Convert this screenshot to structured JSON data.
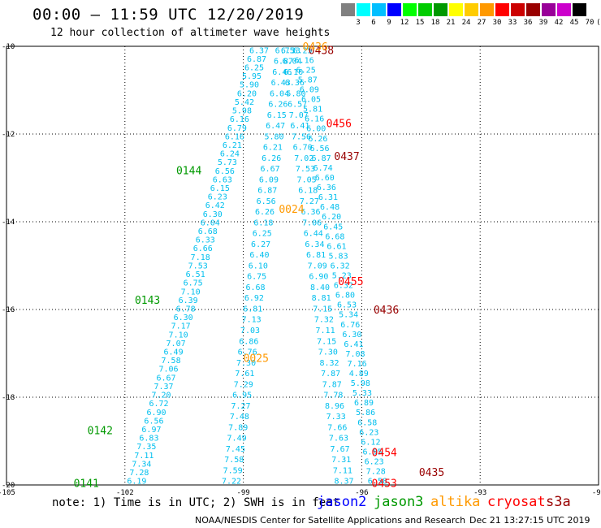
{
  "header": {
    "title": "00:00 – 11:59 UTC 12/20/2019",
    "subtitle": "12 hour collection of altimeter wave heights"
  },
  "colorbar": {
    "colors": [
      "#808080",
      "#00ffff",
      "#00bfff",
      "#0000ff",
      "#00ff00",
      "#00cc00",
      "#009900",
      "#ffff00",
      "#ffcc00",
      "#ff9900",
      "#ff0000",
      "#cc0000",
      "#990000",
      "#990099",
      "#cc00cc",
      "#000000"
    ],
    "labels": [
      "3",
      "6",
      "9",
      "12",
      "15",
      "18",
      "21",
      "24",
      "27",
      "30",
      "33",
      "36",
      "39",
      "42",
      "45",
      "70",
      "(ft)"
    ]
  },
  "axes": {
    "x_ticks": [
      "-105",
      "-102",
      "-99",
      "-96",
      "-93",
      "-90"
    ],
    "y_ticks": [
      "-10",
      "-12",
      "-14",
      "-16",
      "-18",
      "-20"
    ]
  },
  "tracks": [
    {
      "satellite": "jason2",
      "color": "#00bfee",
      "x0": -101.7,
      "y0": -19.9,
      "x1": -98.6,
      "y1": -10.08,
      "values": [
        "6.19",
        "7.28",
        "7.34",
        "7.11",
        "7.35",
        "6.83",
        "6.97",
        "6.56",
        "6.90",
        "6.72",
        "7.20",
        "7.37",
        "6.67",
        "7.06",
        "7.58",
        "6.49",
        "7.07",
        "7.10",
        "7.17",
        "6.30",
        "6.78",
        "6.39",
        "7.10",
        "6.75",
        "6.51",
        "7.53",
        "7.18",
        "6.66",
        "6.33",
        "6.68",
        "6.04",
        "6.30",
        "6.42",
        "6.23",
        "6.15",
        "6.63",
        "6.56",
        "5.73",
        "6.24",
        "6.21",
        "6.16",
        "6.79",
        "6.16",
        "5.98",
        "5.42",
        "6.20",
        "5.90",
        "5.95",
        "6.25",
        "6.87",
        "6.37"
      ]
    },
    {
      "satellite": "jason2",
      "color": "#00bfee",
      "x0": -99.3,
      "y0": -19.9,
      "x1": -97.95,
      "y1": -10.08,
      "values": [
        "7.22",
        "7.59",
        "7.58",
        "7.45",
        "7.49",
        "7.89",
        "7.48",
        "7.27",
        "6.95",
        "7.29",
        "7.61",
        "7.30",
        "6.76",
        "6.86",
        "7.03",
        "7.13",
        "6.81",
        "6.92",
        "6.68",
        "6.75",
        "6.10",
        "6.40",
        "6.27",
        "6.25",
        "6.18",
        "6.26",
        "6.56",
        "6.87",
        "6.09",
        "6.67",
        "6.26",
        "6.21",
        "5.80",
        "6.47",
        "6.15",
        "6.26",
        "6.04",
        "6.43",
        "6.46",
        "6.87",
        "6.75"
      ]
    },
    {
      "satellite": "jason2",
      "color": "#00bfee",
      "x0": -96.45,
      "y0": -19.9,
      "x1": -97.8,
      "y1": -10.08,
      "values": [
        "8.37",
        "7.11",
        "7.31",
        "7.67",
        "7.63",
        "7.66",
        "7.33",
        "8.96",
        "7.78",
        "7.87",
        "7.87",
        "8.32",
        "7.30",
        "7.15",
        "7.11",
        "7.32",
        "7.15",
        "8.81",
        "8.40",
        "6.90",
        "7.09",
        "6.81",
        "6.34",
        "6.44",
        "7.06",
        "6.36",
        "7.27",
        "6.18",
        "7.05",
        "7.53",
        "7.02",
        "6.70",
        "7.56",
        "6.41",
        "7.07",
        "6.57",
        "5.80",
        "6.36",
        "6.10",
        "6.04",
        "6.33"
      ]
    },
    {
      "satellite": "jason2",
      "color": "#00bfee",
      "x0": -95.6,
      "y0": -19.9,
      "x1": -97.5,
      "y1": -10.08,
      "values": [
        "6.58",
        "7.28",
        "6.23",
        "6.55",
        "6.12",
        "6.23",
        "6.58",
        "5.86",
        "6.89",
        "5.33",
        "5.98",
        "4.89",
        "7.16",
        "7.08",
        "6.41",
        "6.30",
        "6.76",
        "5.34",
        "6.53",
        "6.80",
        "6.32",
        "5.23",
        "6.32",
        "5.83",
        "6.61",
        "6.68",
        "6.45",
        "6.20",
        "6.48",
        "6.31",
        "6.36",
        "6.60",
        "6.74",
        "6.87",
        "6.56",
        "6.26",
        "6.00",
        "6.16",
        "5.81",
        "6.05",
        "6.09",
        "5.87",
        "6.25",
        "6.16",
        "6.25"
      ]
    }
  ],
  "time_labels": [
    {
      "text": "0438",
      "color": "#990000",
      "x": -97.35,
      "y": -10.08
    },
    {
      "text": "0436",
      "color": "#ff9900",
      "x": -97.5,
      "y": -10.0
    },
    {
      "text": "0456",
      "color": "#ff0000",
      "x": -96.9,
      "y": -11.75
    },
    {
      "text": "0437",
      "color": "#990000",
      "x": -96.7,
      "y": -12.5
    },
    {
      "text": "0144",
      "color": "#009900",
      "x": -100.7,
      "y": -12.82
    },
    {
      "text": "0024",
      "color": "#ff9900",
      "x": -98.1,
      "y": -13.7
    },
    {
      "text": "0455",
      "color": "#ff0000",
      "x": -96.6,
      "y": -15.35
    },
    {
      "text": "0143",
      "color": "#009900",
      "x": -101.75,
      "y": -15.78
    },
    {
      "text": "0436",
      "color": "#990000",
      "x": -95.7,
      "y": -16.0
    },
    {
      "text": "0025",
      "color": "#ff9900",
      "x": -99.0,
      "y": -17.1
    },
    {
      "text": "0142",
      "color": "#009900",
      "x": -102.95,
      "y": -18.75
    },
    {
      "text": "0454",
      "color": "#ff0000",
      "x": -95.75,
      "y": -19.25
    },
    {
      "text": "0435",
      "color": "#990000",
      "x": -94.55,
      "y": -19.7
    },
    {
      "text": "0141",
      "color": "#009900",
      "x": -103.3,
      "y": -19.95
    },
    {
      "text": "0453",
      "color": "#ff0000",
      "x": -95.75,
      "y": -19.95
    }
  ],
  "footer": {
    "note": "note: 1) Time is in UTC; 2) SWH is in feet",
    "credit": "NOAA/NESDIS Center for Satellite Applications and Research",
    "timestamp": "Dec 21 13:27:15 UTC 2019",
    "legend": [
      {
        "name": "jason2",
        "color": "#0000ff"
      },
      {
        "name": "jason3",
        "color": "#009900"
      },
      {
        "name": "altika",
        "color": "#ff9900"
      },
      {
        "name": "cryosat",
        "color": "#ff0000"
      },
      {
        "name": "s3a",
        "color": "#990000"
      }
    ]
  }
}
